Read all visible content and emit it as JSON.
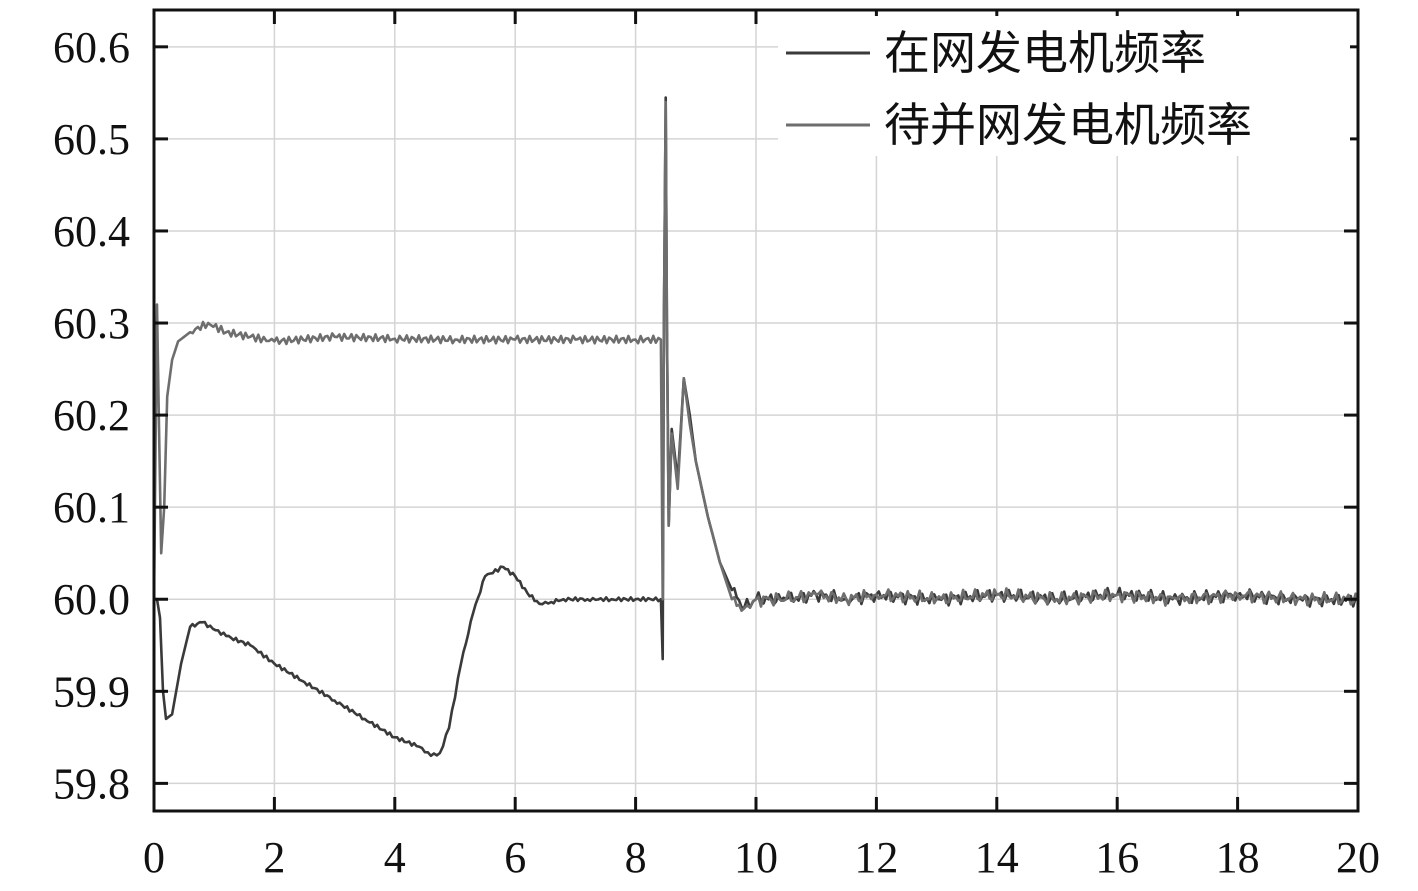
{
  "chart_data": {
    "type": "line",
    "title": "",
    "xlabel": "",
    "ylabel": "",
    "xlim": [
      0,
      20
    ],
    "ylim": [
      59.77,
      60.64
    ],
    "grid": true,
    "legend_position": "top-right",
    "x_ticks": [
      "0",
      "2",
      "4",
      "6",
      "8",
      "10",
      "12",
      "14",
      "16",
      "18",
      "20"
    ],
    "y_ticks": [
      "60.6",
      "60.5",
      "60.4",
      "60.3",
      "60.2",
      "60.1",
      "60.0",
      "59.9",
      "59.8"
    ],
    "series": [
      {
        "name": "在网发电机频率",
        "color": "#3a3a3a",
        "x": [
          0.0,
          0.05,
          0.1,
          0.15,
          0.2,
          0.3,
          0.45,
          0.6,
          0.8,
          1.2,
          1.6,
          2.0,
          2.5,
          3.0,
          3.5,
          4.0,
          4.4,
          4.6,
          4.75,
          4.9,
          5.1,
          5.3,
          5.5,
          5.8,
          6.0,
          6.2,
          6.4,
          6.6,
          6.8,
          7.2,
          7.6,
          8.0,
          8.42,
          8.45,
          8.47,
          8.5,
          8.52,
          8.55,
          8.6,
          8.7,
          8.8,
          8.9,
          9.0,
          9.2,
          9.4,
          9.6,
          9.8,
          10.0,
          10.5,
          11.0,
          11.5,
          12.0,
          13.0,
          14.0,
          15.0,
          16.0,
          17.0,
          18.0,
          19.0,
          20.0
        ],
        "y": [
          60.0,
          60.0,
          59.98,
          59.9,
          59.87,
          59.875,
          59.93,
          59.97,
          59.975,
          59.96,
          59.95,
          59.93,
          59.91,
          59.89,
          59.87,
          59.85,
          59.84,
          59.83,
          59.833,
          59.86,
          59.93,
          59.985,
          60.025,
          60.035,
          60.025,
          60.007,
          59.995,
          59.997,
          60.0,
          60.0,
          60.0,
          60.0,
          60.0,
          59.935,
          60.3,
          60.545,
          60.3,
          60.08,
          60.185,
          60.13,
          60.24,
          60.2,
          60.15,
          60.09,
          60.04,
          60.01,
          59.99,
          60.0,
          60.0,
          60.005,
          60.0,
          60.005,
          60.0,
          60.005,
          60.0,
          60.005,
          60.0,
          60.005,
          60.0,
          60.0
        ]
      },
      {
        "name": "待并网发电机频率",
        "color": "#6e6e6e",
        "x": [
          0.0,
          0.05,
          0.08,
          0.12,
          0.17,
          0.22,
          0.3,
          0.4,
          0.6,
          0.9,
          1.2,
          1.6,
          2.0,
          3.0,
          4.0,
          5.0,
          6.0,
          7.0,
          8.0,
          8.42,
          8.45,
          8.47,
          8.5,
          8.52,
          8.55,
          8.6,
          8.7,
          8.8,
          8.9,
          9.0,
          9.2,
          9.4,
          9.6,
          9.8,
          10.0,
          10.5,
          11.0,
          11.5,
          12.0,
          13.0,
          14.0,
          15.0,
          16.0,
          17.0,
          18.0,
          19.0,
          20.0
        ],
        "y": [
          60.0,
          60.32,
          60.2,
          60.05,
          60.1,
          60.22,
          60.26,
          60.28,
          60.29,
          60.3,
          60.29,
          60.285,
          60.28,
          60.285,
          60.283,
          60.282,
          60.282,
          60.282,
          60.282,
          60.282,
          60.0,
          60.3,
          60.54,
          60.3,
          60.08,
          60.18,
          60.12,
          60.24,
          60.19,
          60.15,
          60.09,
          60.04,
          60.0,
          59.99,
          60.0,
          60.0,
          60.005,
          60.0,
          60.005,
          60.0,
          60.005,
          60.0,
          60.005,
          60.0,
          60.005,
          60.0,
          60.0
        ]
      }
    ]
  }
}
